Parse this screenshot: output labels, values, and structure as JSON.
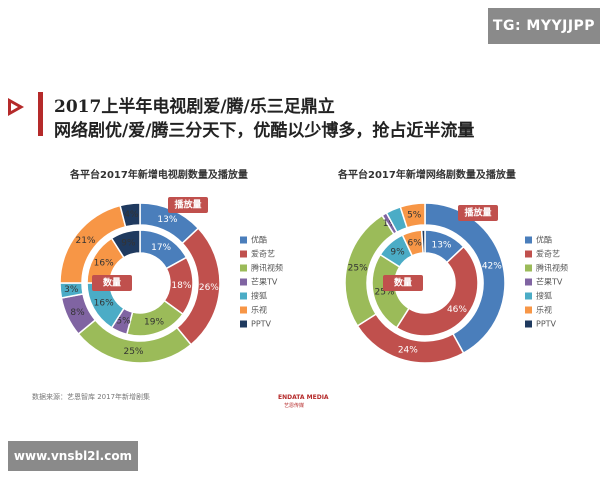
{
  "watermark_top": "TG: MYYJJPP",
  "watermark_bottom": "www.vnsbl2l.com",
  "title_line1": "2017上半年电视剧爱/腾/乐三足鼎立",
  "title_line2": "网络剧优/爱/腾三分天下，优酷以少博多，抢占近半流量",
  "source": "数据来源：艺恩智库 2017年新增剧集",
  "brand_name": "ENDATA MEDIA",
  "brand_sub": "艺恩传媒",
  "colors": {
    "youku": "#4a7ebb",
    "iqiyi": "#c0504d",
    "tencent": "#9bbb59",
    "mango": "#8064a2",
    "sohu": "#4bacc6",
    "letv": "#f79646",
    "pptv": "#1f3a5f",
    "tag": "#c0504d"
  },
  "chart_data": [
    {
      "type": "donut",
      "title": "各平台2017年新增电视剧数量及播放量",
      "legend": [
        "优酷",
        "爱奇艺",
        "腾讯视频",
        "芒果TV",
        "搜狐",
        "乐视",
        "PPTV"
      ],
      "legend_placement": "right",
      "series": [
        {
          "name": "播放量",
          "ring": "outer",
          "values": [
            13,
            26,
            25,
            8,
            3,
            21,
            4
          ],
          "labels": [
            "13%",
            "26%",
            "25%",
            "8%",
            "3%",
            "21%",
            "4%"
          ]
        },
        {
          "name": "数量",
          "ring": "inner",
          "values": [
            17,
            18,
            19,
            5,
            16,
            16,
            9
          ],
          "labels": [
            "17%",
            "18%",
            "19%",
            "5%",
            "16%",
            "16%",
            "9%"
          ]
        }
      ],
      "tag_outer": "播放量",
      "tag_inner": "数量"
    },
    {
      "type": "donut",
      "title": "各平台2017年新增网络剧数量及播放量",
      "legend": [
        "优酷",
        "爱奇艺",
        "腾讯视频",
        "芒果TV",
        "搜狐",
        "乐视",
        "PPTV"
      ],
      "legend_placement": "right",
      "series": [
        {
          "name": "播放量",
          "ring": "outer",
          "values": [
            42,
            24,
            25,
            1,
            3,
            5,
            0
          ],
          "labels": [
            "42%",
            "24%",
            "25%",
            "1%",
            "",
            "5%",
            ""
          ]
        },
        {
          "name": "数量",
          "ring": "inner",
          "values": [
            13,
            46,
            25,
            0,
            9,
            6,
            1
          ],
          "labels": [
            "13%",
            "46%",
            "25%",
            "",
            "9%",
            "6%",
            ""
          ]
        }
      ],
      "tag_outer": "播放量",
      "tag_inner": "数量"
    }
  ]
}
